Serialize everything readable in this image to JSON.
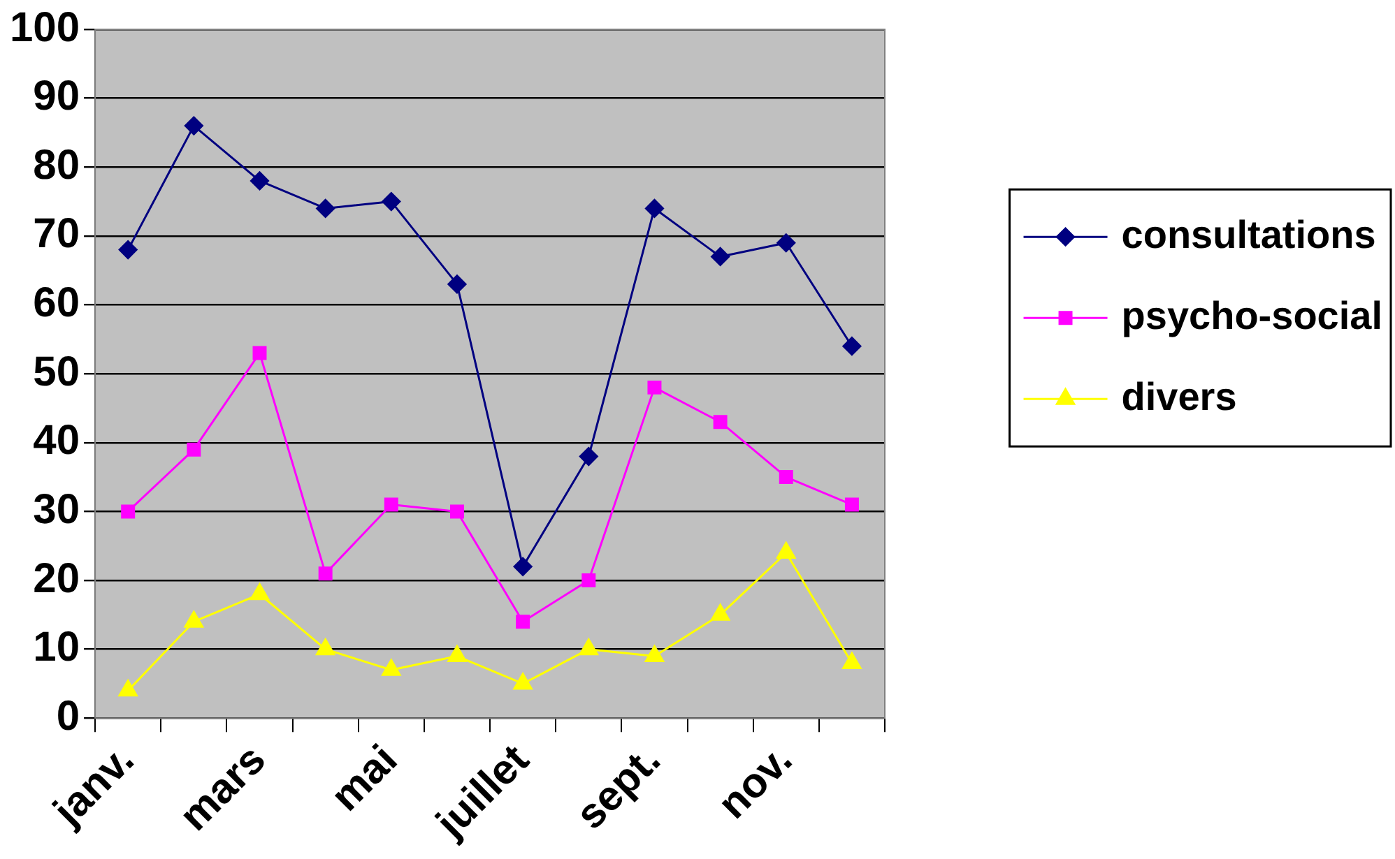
{
  "chart_data": {
    "type": "line",
    "categories": [
      "janv.",
      null,
      "mars",
      null,
      "mai",
      null,
      "juillet",
      null,
      "sept.",
      null,
      "nov.",
      null
    ],
    "series": [
      {
        "name": "consultations",
        "color": "#000080",
        "marker": "diamond",
        "values": [
          68,
          86,
          78,
          74,
          75,
          63,
          22,
          38,
          74,
          67,
          69,
          54
        ]
      },
      {
        "name": "psycho-social",
        "color": "#ff00ff",
        "marker": "square",
        "values": [
          30,
          39,
          53,
          21,
          31,
          30,
          14,
          20,
          48,
          43,
          35,
          31
        ]
      },
      {
        "name": "divers",
        "color": "#ffff00",
        "marker": "triangle",
        "values": [
          4,
          14,
          18,
          10,
          7,
          9,
          5,
          10,
          9,
          15,
          24,
          8
        ]
      }
    ],
    "ylim": [
      0,
      100
    ],
    "yticks": [
      0,
      10,
      20,
      30,
      40,
      50,
      60,
      70,
      80,
      90,
      100
    ],
    "grid": "y",
    "legend": "right",
    "line_style": "solid"
  }
}
